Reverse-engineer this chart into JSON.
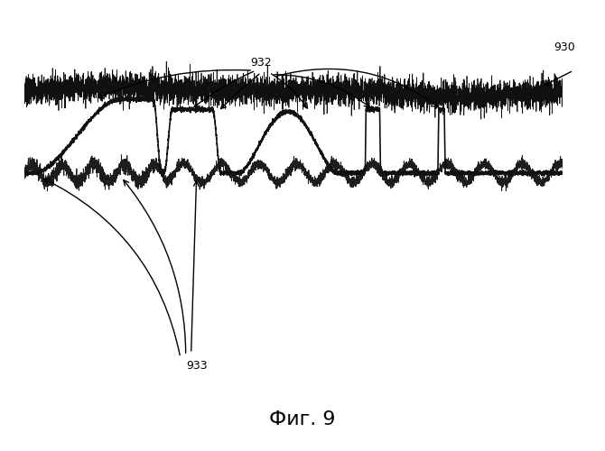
{
  "title": "Фиг. 9",
  "label_930": "930",
  "label_932": "932",
  "label_933": "933",
  "fig_width": 6.7,
  "fig_height": 5.0,
  "dpi": 100,
  "bg_color": "#ffffff",
  "signal_color": "#111111",
  "border_color": "#333333"
}
